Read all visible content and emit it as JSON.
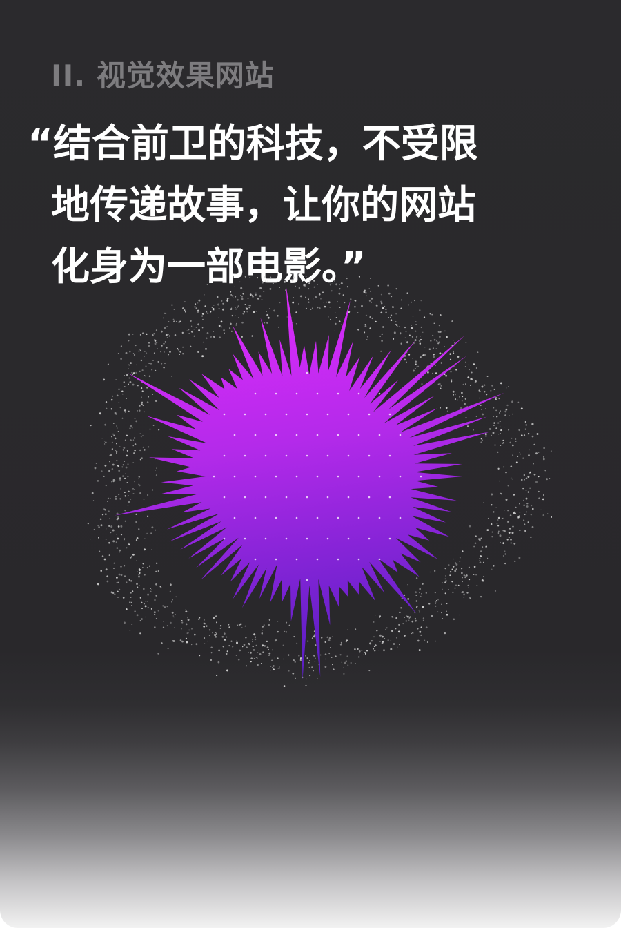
{
  "section": {
    "label": "II. 视觉效果网站"
  },
  "quote": {
    "open_mark": "“",
    "line1": "结合前卫的科技，不受限",
    "line2": "地传递故事，让你的网站",
    "line3": "化身为一部电影。",
    "close_mark": "”"
  },
  "colors": {
    "background": "#2b2a2d",
    "label": "#7d7c7f",
    "quote_text": "#ffffff",
    "burst_top": "#e52cff",
    "burst_bottom": "#6a20cc",
    "particles": "#d9d9d9"
  },
  "illustration": {
    "name": "particle-burst-illustration"
  }
}
